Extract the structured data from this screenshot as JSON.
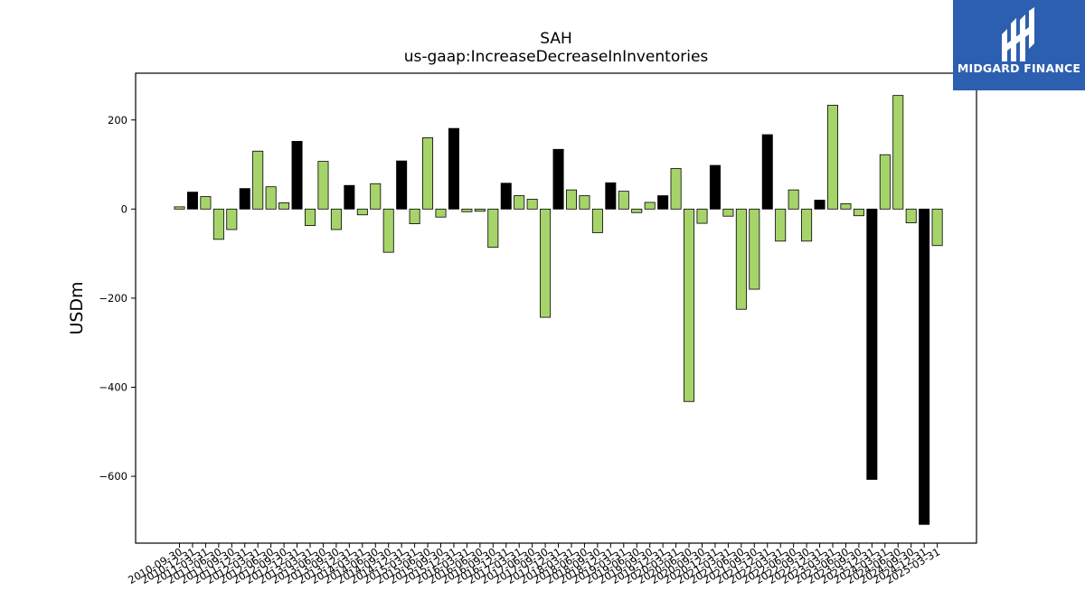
{
  "chart_data": {
    "type": "bar",
    "title": "SAH",
    "subtitle": "us-gaap:IncreaseDecreaseInInventories",
    "xlabel": "",
    "ylabel": "USDm",
    "ylim": [
      -750,
      305
    ],
    "yticks": [
      200,
      0,
      -200,
      -400,
      -600
    ],
    "ytick_labels": [
      "200",
      "0",
      "−200",
      "−400",
      "−600"
    ],
    "grid": false,
    "legend": "none",
    "colors": {
      "positive": "#000000",
      "other": "#a6d46a",
      "edge": "#000000"
    },
    "categories": [
      "2010-09-30",
      "2010-12-31",
      "2011-03-31",
      "2011-06-30",
      "2011-09-30",
      "2011-12-31",
      "2012-03-31",
      "2012-06-30",
      "2012-09-30",
      "2012-12-31",
      "2013-03-31",
      "2013-06-30",
      "2013-09-30",
      "2013-12-31",
      "2014-03-31",
      "2014-06-30",
      "2014-09-30",
      "2014-12-31",
      "2015-03-31",
      "2015-06-30",
      "2015-09-30",
      "2015-12-31",
      "2016-03-31",
      "2016-06-30",
      "2016-09-30",
      "2016-12-31",
      "2017-03-31",
      "2017-06-30",
      "2017-09-30",
      "2017-12-31",
      "2018-03-31",
      "2018-06-30",
      "2018-09-30",
      "2018-12-31",
      "2019-03-31",
      "2019-06-30",
      "2019-09-30",
      "2019-12-31",
      "2020-03-31",
      "2020-06-30",
      "2020-09-30",
      "2020-12-31",
      "2021-03-31",
      "2021-06-30",
      "2021-09-30",
      "2021-12-31",
      "2022-03-31",
      "2022-06-30",
      "2022-09-30",
      "2022-12-31",
      "2023-03-31",
      "2023-06-30",
      "2023-09-30",
      "2023-12-31",
      "2024-03-31",
      "2024-06-30",
      "2024-09-30",
      "2024-12-31",
      "2025-03-31"
    ],
    "values": [
      5,
      38,
      28,
      -68,
      -46,
      46,
      130,
      50,
      14,
      152,
      -37,
      107,
      -46,
      53,
      -13,
      57,
      -97,
      108,
      -33,
      160,
      -18,
      181,
      -6,
      -5,
      -86,
      58,
      30,
      22,
      -243,
      134,
      43,
      30,
      -53,
      59,
      40,
      -8,
      15,
      30,
      91,
      -432,
      -32,
      98,
      -16,
      -225,
      -180,
      167,
      -72,
      43,
      -72,
      20,
      233,
      12,
      -15,
      -607,
      122,
      255,
      -31,
      -708,
      -82
    ],
    "black_bars": [
      1,
      5,
      9,
      13,
      17,
      21,
      25,
      29,
      33,
      37,
      41,
      45,
      49,
      53,
      57
    ]
  },
  "logo": {
    "text": "MIDGARD FINANCE",
    "brand_color": "#2d5fb0"
  }
}
